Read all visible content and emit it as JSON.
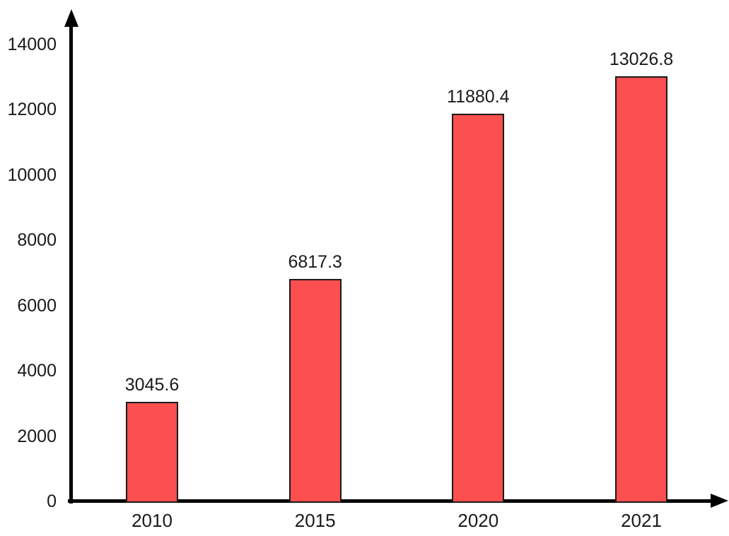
{
  "chart_data": {
    "type": "bar",
    "title": "",
    "xlabel": "",
    "ylabel": "",
    "categories": [
      "2010",
      "2015",
      "2020",
      "2021"
    ],
    "values": [
      3045.6,
      6817.3,
      11880.4,
      13026.8
    ],
    "bar_labels": [
      "3045.6",
      "6817.3",
      "11880.4",
      "13026.8"
    ],
    "ylim": [
      0,
      14000
    ],
    "ytick_step": 2000,
    "ytick_labels": [
      "0",
      "2000",
      "4000",
      "6000",
      "8000",
      "10000",
      "12000",
      "14000"
    ],
    "grid": "off",
    "legend": "none",
    "bar_fill_color": "#fc4f4f",
    "bar_border_color": "#1a1a1a",
    "axis_color": "#000000",
    "text_color": "#1a1a1a"
  }
}
